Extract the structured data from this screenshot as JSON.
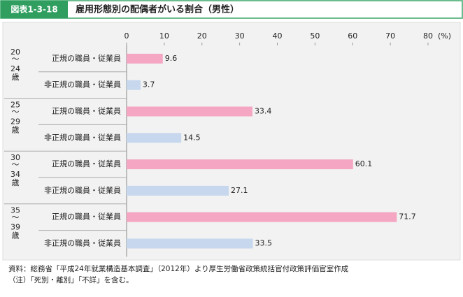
{
  "chart_data": {
    "type": "hbar",
    "figure_label": "図表1-3-18",
    "title": "雇用形態別の配偶者がいる割合（男性）",
    "unit": "(%)",
    "groups": [
      [
        "20",
        "〜",
        "24",
        "歳"
      ],
      [
        "25",
        "〜",
        "29",
        "歳"
      ],
      [
        "30",
        "〜",
        "34",
        "歳"
      ],
      [
        "35",
        "〜",
        "39",
        "歳"
      ]
    ],
    "categories": [
      "正規の職員・従業員",
      "非正規の職員・従業員",
      "正規の職員・従業員",
      "非正規の職員・従業員",
      "正規の職員・従業員",
      "非正規の職員・従業員",
      "正規の職員・従業員",
      "非正規の職員・従業員"
    ],
    "values": [
      9.6,
      3.7,
      33.4,
      14.5,
      60.1,
      27.1,
      71.7,
      33.5
    ],
    "colors": [
      "#f4a6c2",
      "#c6d7ee",
      "#f4a6c2",
      "#c6d7ee",
      "#f4a6c2",
      "#c6d7ee",
      "#f4a6c2",
      "#c6d7ee"
    ],
    "xlim": [
      0,
      80
    ],
    "xticks": [
      0,
      10,
      20,
      30,
      40,
      50,
      60,
      70,
      80
    ],
    "notes": [
      "資料：総務省「平成24年就業構造基本調査」（2012年）より厚生労働省政策統括官付政策評価官室作成",
      "（注）「死別・離別」「不詳」を含む。"
    ]
  }
}
